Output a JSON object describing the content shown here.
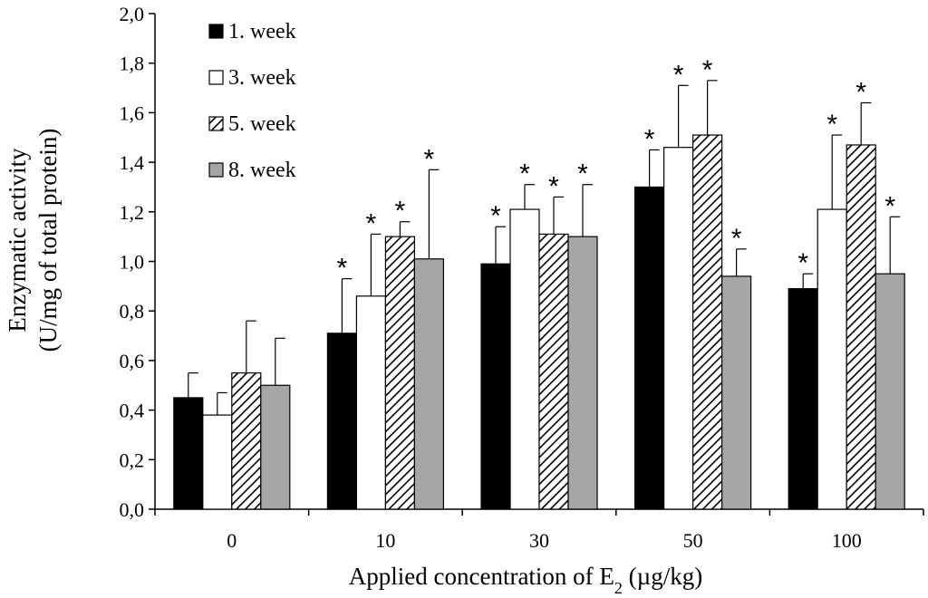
{
  "chart_data": {
    "type": "bar",
    "title": "",
    "xlabel_main": "Applied concentration of E",
    "xlabel_sub": "2",
    "xlabel_unit": " (µg/kg)",
    "ylabel_line1": "Enzymatic activity",
    "ylabel_line2": "(U/mg of total protein)",
    "ylim": [
      0,
      2.0
    ],
    "yticks": [
      "0,0",
      "0,2",
      "0,4",
      "0,6",
      "0,8",
      "1,0",
      "1,2",
      "1,4",
      "1,6",
      "1,8",
      "2,0"
    ],
    "categories": [
      "0",
      "10",
      "30",
      "50",
      "100"
    ],
    "series": [
      {
        "name": "1. week",
        "fill": "#000000",
        "pattern": "solid",
        "values": [
          0.45,
          0.71,
          0.99,
          1.3,
          0.89
        ],
        "errors": [
          0.1,
          0.22,
          0.15,
          0.15,
          0.06
        ],
        "significant": [
          false,
          true,
          true,
          true,
          true
        ]
      },
      {
        "name": "3. week",
        "fill": "#ffffff",
        "pattern": "solid",
        "values": [
          0.38,
          0.86,
          1.21,
          1.46,
          1.21
        ],
        "errors": [
          0.09,
          0.25,
          0.1,
          0.25,
          0.3
        ],
        "significant": [
          false,
          true,
          true,
          true,
          true
        ]
      },
      {
        "name": "5. week",
        "fill": "#ffffff",
        "pattern": "diagonal-hatch",
        "values": [
          0.55,
          1.1,
          1.11,
          1.51,
          1.47
        ],
        "errors": [
          0.21,
          0.06,
          0.15,
          0.22,
          0.17
        ],
        "significant": [
          false,
          true,
          true,
          true,
          true
        ]
      },
      {
        "name": "8. week",
        "fill": "#a6a6a6",
        "pattern": "solid",
        "values": [
          0.5,
          1.01,
          1.1,
          0.94,
          0.95
        ],
        "errors": [
          0.19,
          0.36,
          0.21,
          0.11,
          0.23
        ],
        "significant": [
          false,
          true,
          true,
          true,
          true
        ]
      }
    ],
    "significance_marker": "*",
    "legend_position": "top-left",
    "grid": false
  }
}
